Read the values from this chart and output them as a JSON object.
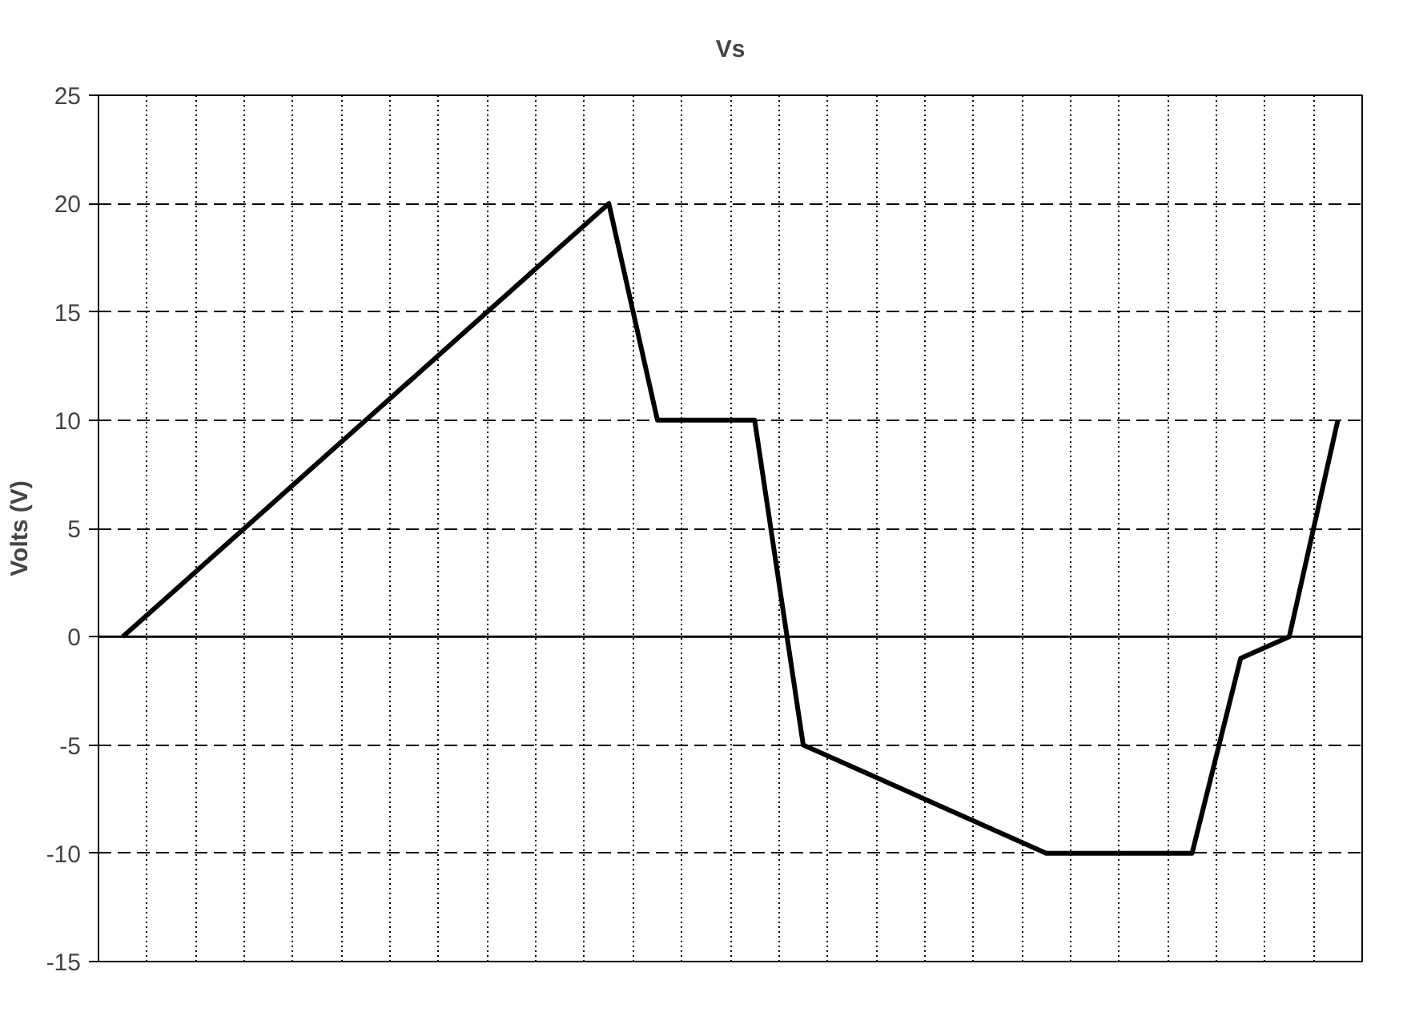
{
  "chart_data": {
    "type": "line",
    "title": "Vs",
    "ylabel": "Volts (V)",
    "categories": [
      null,
      null,
      null,
      null,
      null,
      null,
      null,
      null,
      null,
      null,
      null,
      null,
      null,
      null,
      null,
      null,
      null,
      null,
      null,
      null,
      null,
      null,
      null,
      null,
      null,
      null
    ],
    "series": [
      {
        "color": "#000000",
        "values": [
          0,
          2,
          4,
          6,
          8,
          10,
          12,
          14,
          16,
          18,
          20,
          10,
          10,
          10,
          -5,
          -6,
          -7,
          -8,
          -9,
          -10,
          -10,
          -10,
          -10,
          -1,
          0,
          10
        ]
      }
    ],
    "ylim": [
      -15,
      25
    ],
    "yticks": [
      -15,
      -10,
      -5,
      0,
      5,
      10,
      15,
      20,
      25
    ],
    "grid": true,
    "marker": "none",
    "line_style": "solid"
  }
}
